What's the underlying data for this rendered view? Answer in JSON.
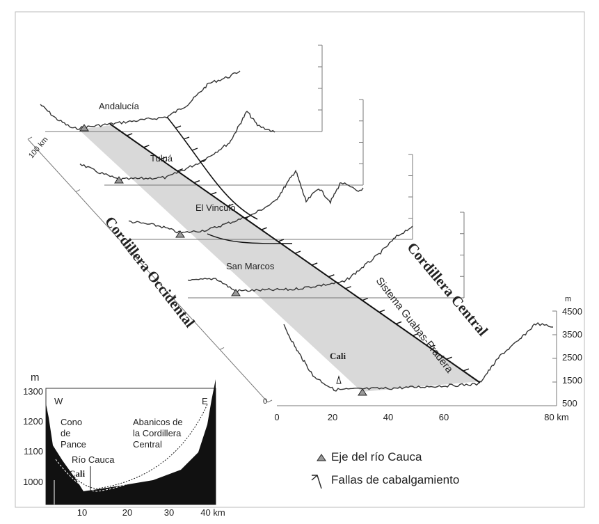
{
  "places": [
    "Andalucía",
    "Tuluá",
    "El Vinculo",
    "San Marcos",
    "Cali"
  ],
  "ranges": [
    "Cordillera Occidental",
    "Cordillera Central"
  ],
  "fault_system": "Sistema Guabas-Pradera",
  "main_axes": {
    "x_ticks": [
      "0",
      "20",
      "40",
      "60",
      "80 km"
    ],
    "y_unit": "m",
    "y_ticks": [
      "4500",
      "3500",
      "2500",
      "1500",
      "500"
    ],
    "depth_end": "100 km",
    "depth_start": "0"
  },
  "inset": {
    "y_unit": "m",
    "y_ticks": [
      "1300",
      "1200",
      "1100",
      "1000"
    ],
    "x_ticks": [
      "10",
      "20",
      "30",
      "40 km"
    ],
    "west": "W",
    "east": "E",
    "labels": [
      "Cono",
      "de",
      "Pance",
      "Abanicos de",
      "la Cordillera",
      "Central",
      "Río Cauca",
      "Cali"
    ]
  },
  "legend": [
    "Eje del río Cauca",
    "Fallas de cabalgamiento"
  ]
}
